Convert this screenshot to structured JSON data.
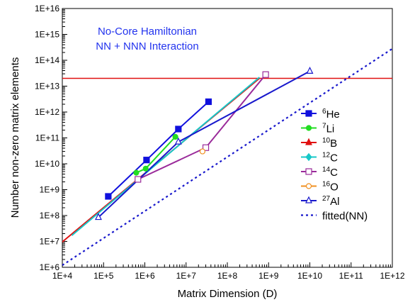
{
  "chart_data": {
    "type": "scatter",
    "xlabel": "Matrix Dimension (D)",
    "ylabel": "Number non-zero matrix elements",
    "x_scale": "log",
    "y_scale": "log",
    "xlim": [
      10000,
      1000000000000
    ],
    "ylim": [
      1000000,
      10000000000000000
    ],
    "x_ticks": [
      "1E+4",
      "1E+5",
      "1E+6",
      "1E+7",
      "1E+8",
      "1E+9",
      "1E+10",
      "1E+11",
      "1E+12"
    ],
    "y_ticks": [
      "1E+6",
      "1E+7",
      "1E+8",
      "1E+9",
      "1E+10",
      "1E+11",
      "1E+12",
      "1E+13",
      "1E+14",
      "1E+15",
      "1E+16"
    ],
    "annotations": [
      "No-Core Hamiltonian",
      "NN + NNN Interaction"
    ],
    "annotation_color": "#2233ee",
    "threshold_line": {
      "y": 20000000000000,
      "color": "#e01010"
    },
    "legend_position": "right",
    "series": [
      {
        "name": "He",
        "sup": "6",
        "color": "#1010dd",
        "marker": "square-filled",
        "x": [
          130000,
          1100000,
          6500000,
          35000000
        ],
        "y": [
          550000000,
          14000000000,
          220000000000,
          2500000000000
        ]
      },
      {
        "name": "Li",
        "sup": "7",
        "color": "#22dd22",
        "marker": "circle-filled",
        "x": [
          620000,
          1050000,
          5500000
        ],
        "y": [
          4500000000,
          6500000000,
          110000000000
        ]
      },
      {
        "name": "B",
        "sup": "10",
        "color": "#e01010",
        "marker": "triangle-filled",
        "x": [
          7000,
          600000000
        ],
        "y": [
          6000000,
          20000000000000
        ]
      },
      {
        "name": "C",
        "sup": "12",
        "color": "#18c8c8",
        "marker": "diamond-filled",
        "x": [
          17000,
          600000000
        ],
        "y": [
          17000000,
          22000000000000
        ]
      },
      {
        "name": "C",
        "sup": "14",
        "color": "#9a2a9a",
        "marker": "square-open",
        "x": [
          680000,
          30000000,
          850000000
        ],
        "y": [
          2500000000,
          42000000000,
          28000000000000
        ]
      },
      {
        "name": "O",
        "sup": "16",
        "color": "#f09020",
        "marker": "circle-open",
        "x": [
          25000000
        ],
        "y": [
          30000000000
        ]
      },
      {
        "name": "Al",
        "sup": "27",
        "color": "#1818cc",
        "marker": "triangle-open",
        "x": [
          75000,
          6500000,
          10000000000
        ],
        "y": [
          85000000,
          70000000000,
          38000000000000
        ]
      },
      {
        "name": "fitted(NN)",
        "sup": "",
        "color": "#1818cc",
        "marker": "none",
        "dashed": true,
        "x": [
          10000,
          1000000000000
        ],
        "y": [
          1200000,
          280000000000000
        ]
      }
    ]
  }
}
